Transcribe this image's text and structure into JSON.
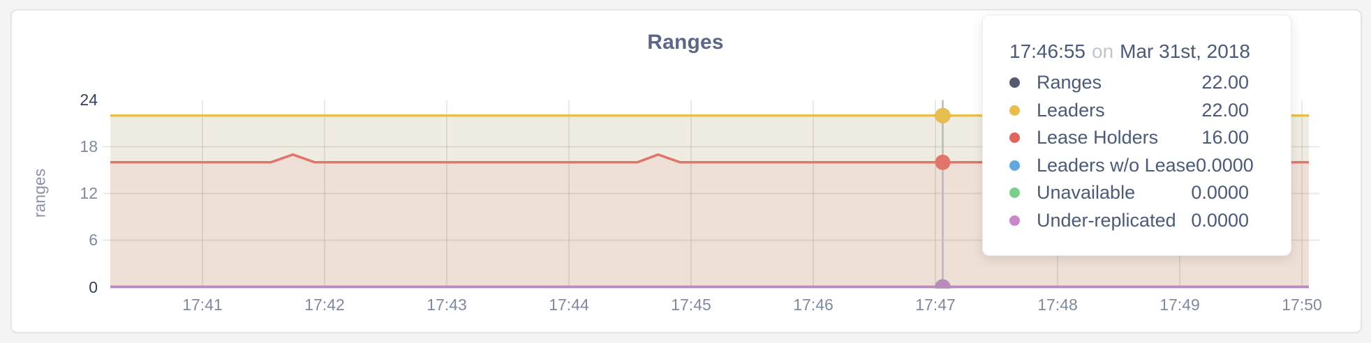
{
  "page": {
    "background": "#f4f4f5"
  },
  "card": {
    "border_color": "#e5e5e7"
  },
  "axis_colors": {
    "title": "#5a6885",
    "axis_label": "#8b94a7",
    "tick_emphasis": "#354158",
    "tick_normal": "#7f8aa0",
    "grid": "rgba(110,100,88,0.14)",
    "guideline": "#b9b9b9",
    "tooltip_text": "#4b5a77",
    "tooltip_muted": "#c0c4cc"
  },
  "chart_data": {
    "type": "area",
    "title": "Ranges",
    "ylabel": "ranges",
    "ylim": [
      0,
      24
    ],
    "grid": true,
    "legend_position": "tooltip",
    "yticks": [
      {
        "value": 0,
        "label": "0",
        "emphasis": true,
        "grid": false
      },
      {
        "value": 6,
        "label": "6",
        "emphasis": false,
        "grid": true
      },
      {
        "value": 12,
        "label": "12",
        "emphasis": false,
        "grid": true
      },
      {
        "value": 18,
        "label": "18",
        "emphasis": false,
        "grid": true
      },
      {
        "value": 24,
        "label": "24",
        "emphasis": true,
        "grid": false
      }
    ],
    "xticks": [
      {
        "minute": 41,
        "label": "17:41"
      },
      {
        "minute": 42,
        "label": "17:42"
      },
      {
        "minute": 43,
        "label": "17:43"
      },
      {
        "minute": 44,
        "label": "17:44"
      },
      {
        "minute": 45,
        "label": "17:45"
      },
      {
        "minute": 46,
        "label": "17:46"
      },
      {
        "minute": 47,
        "label": "17:47"
      },
      {
        "minute": 48,
        "label": "17:48"
      },
      {
        "minute": 49,
        "label": "17:49"
      },
      {
        "minute": 50,
        "label": "17:50"
      }
    ],
    "x_range_min": [
      40.246,
      50.057
    ],
    "series": [
      {
        "name": "Ranges",
        "color": "#565b6e",
        "fill": null,
        "points": [
          [
            40.246,
            22
          ],
          [
            50.057,
            22
          ]
        ]
      },
      {
        "name": "Leaders",
        "color": "#e8bf4e",
        "fill": "#efece2",
        "points": [
          [
            40.246,
            22
          ],
          [
            50.057,
            22
          ]
        ]
      },
      {
        "name": "Lease Holders",
        "color": "#e0756b",
        "fill": "#eedfd7",
        "points": [
          [
            40.246,
            16
          ],
          [
            41.56,
            16
          ],
          [
            41.74,
            17
          ],
          [
            41.92,
            16
          ],
          [
            44.56,
            16
          ],
          [
            44.73,
            17
          ],
          [
            44.91,
            16
          ],
          [
            50.057,
            16
          ]
        ]
      },
      {
        "name": "Leaders w/o Lease",
        "color": "#64a7dd",
        "fill": null,
        "points": [
          [
            40.246,
            0
          ],
          [
            50.057,
            0
          ]
        ]
      },
      {
        "name": "Unavailable",
        "color": "#77d18c",
        "fill": null,
        "points": [
          [
            40.246,
            0
          ],
          [
            50.057,
            0
          ]
        ]
      },
      {
        "name": "Under-replicated",
        "color": "#b98cbc",
        "fill": null,
        "points": [
          [
            40.246,
            0
          ],
          [
            50.057,
            0
          ]
        ]
      }
    ]
  },
  "tooltip": {
    "time": "17:46:55",
    "conjunction": "on",
    "date": "Mar 31st, 2018",
    "hover_minute": 47.06,
    "rows": [
      {
        "label": "Ranges",
        "value": "22.00",
        "y": 22,
        "dot_color": "#565b6e"
      },
      {
        "label": "Leaders",
        "value": "22.00",
        "y": 22,
        "dot_color": "#eabd4a"
      },
      {
        "label": "Lease Holders",
        "value": "16.00",
        "y": 16,
        "dot_color": "#e0655a"
      },
      {
        "label": "Leaders w/o Lease",
        "value": "0.0000",
        "y": 0,
        "dot_color": "#64a7dd"
      },
      {
        "label": "Unavailable",
        "value": "0.0000",
        "y": 0,
        "dot_color": "#77d18c"
      },
      {
        "label": "Under-replicated",
        "value": "0.0000",
        "y": 0,
        "dot_color": "#c987c9"
      }
    ]
  }
}
